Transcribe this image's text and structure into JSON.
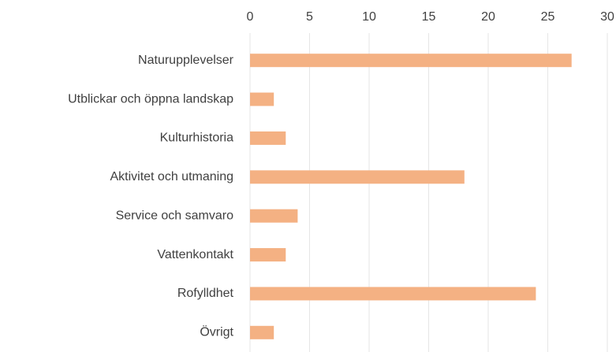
{
  "chart_data": {
    "type": "bar",
    "orientation": "horizontal",
    "categories": [
      "Naturupplevelser",
      "Utblickar och öppna landskap",
      "Kulturhistoria",
      "Aktivitet och utmaning",
      "Service och samvaro",
      "Vattenkontakt",
      "Rofylldhet",
      "Övrigt"
    ],
    "values": [
      27,
      2,
      3,
      18,
      4,
      3,
      24,
      2
    ],
    "color": "#f4b183",
    "xlim": [
      0,
      30
    ],
    "xticks": [
      0,
      5,
      10,
      15,
      20,
      25,
      30
    ],
    "grid": true
  }
}
